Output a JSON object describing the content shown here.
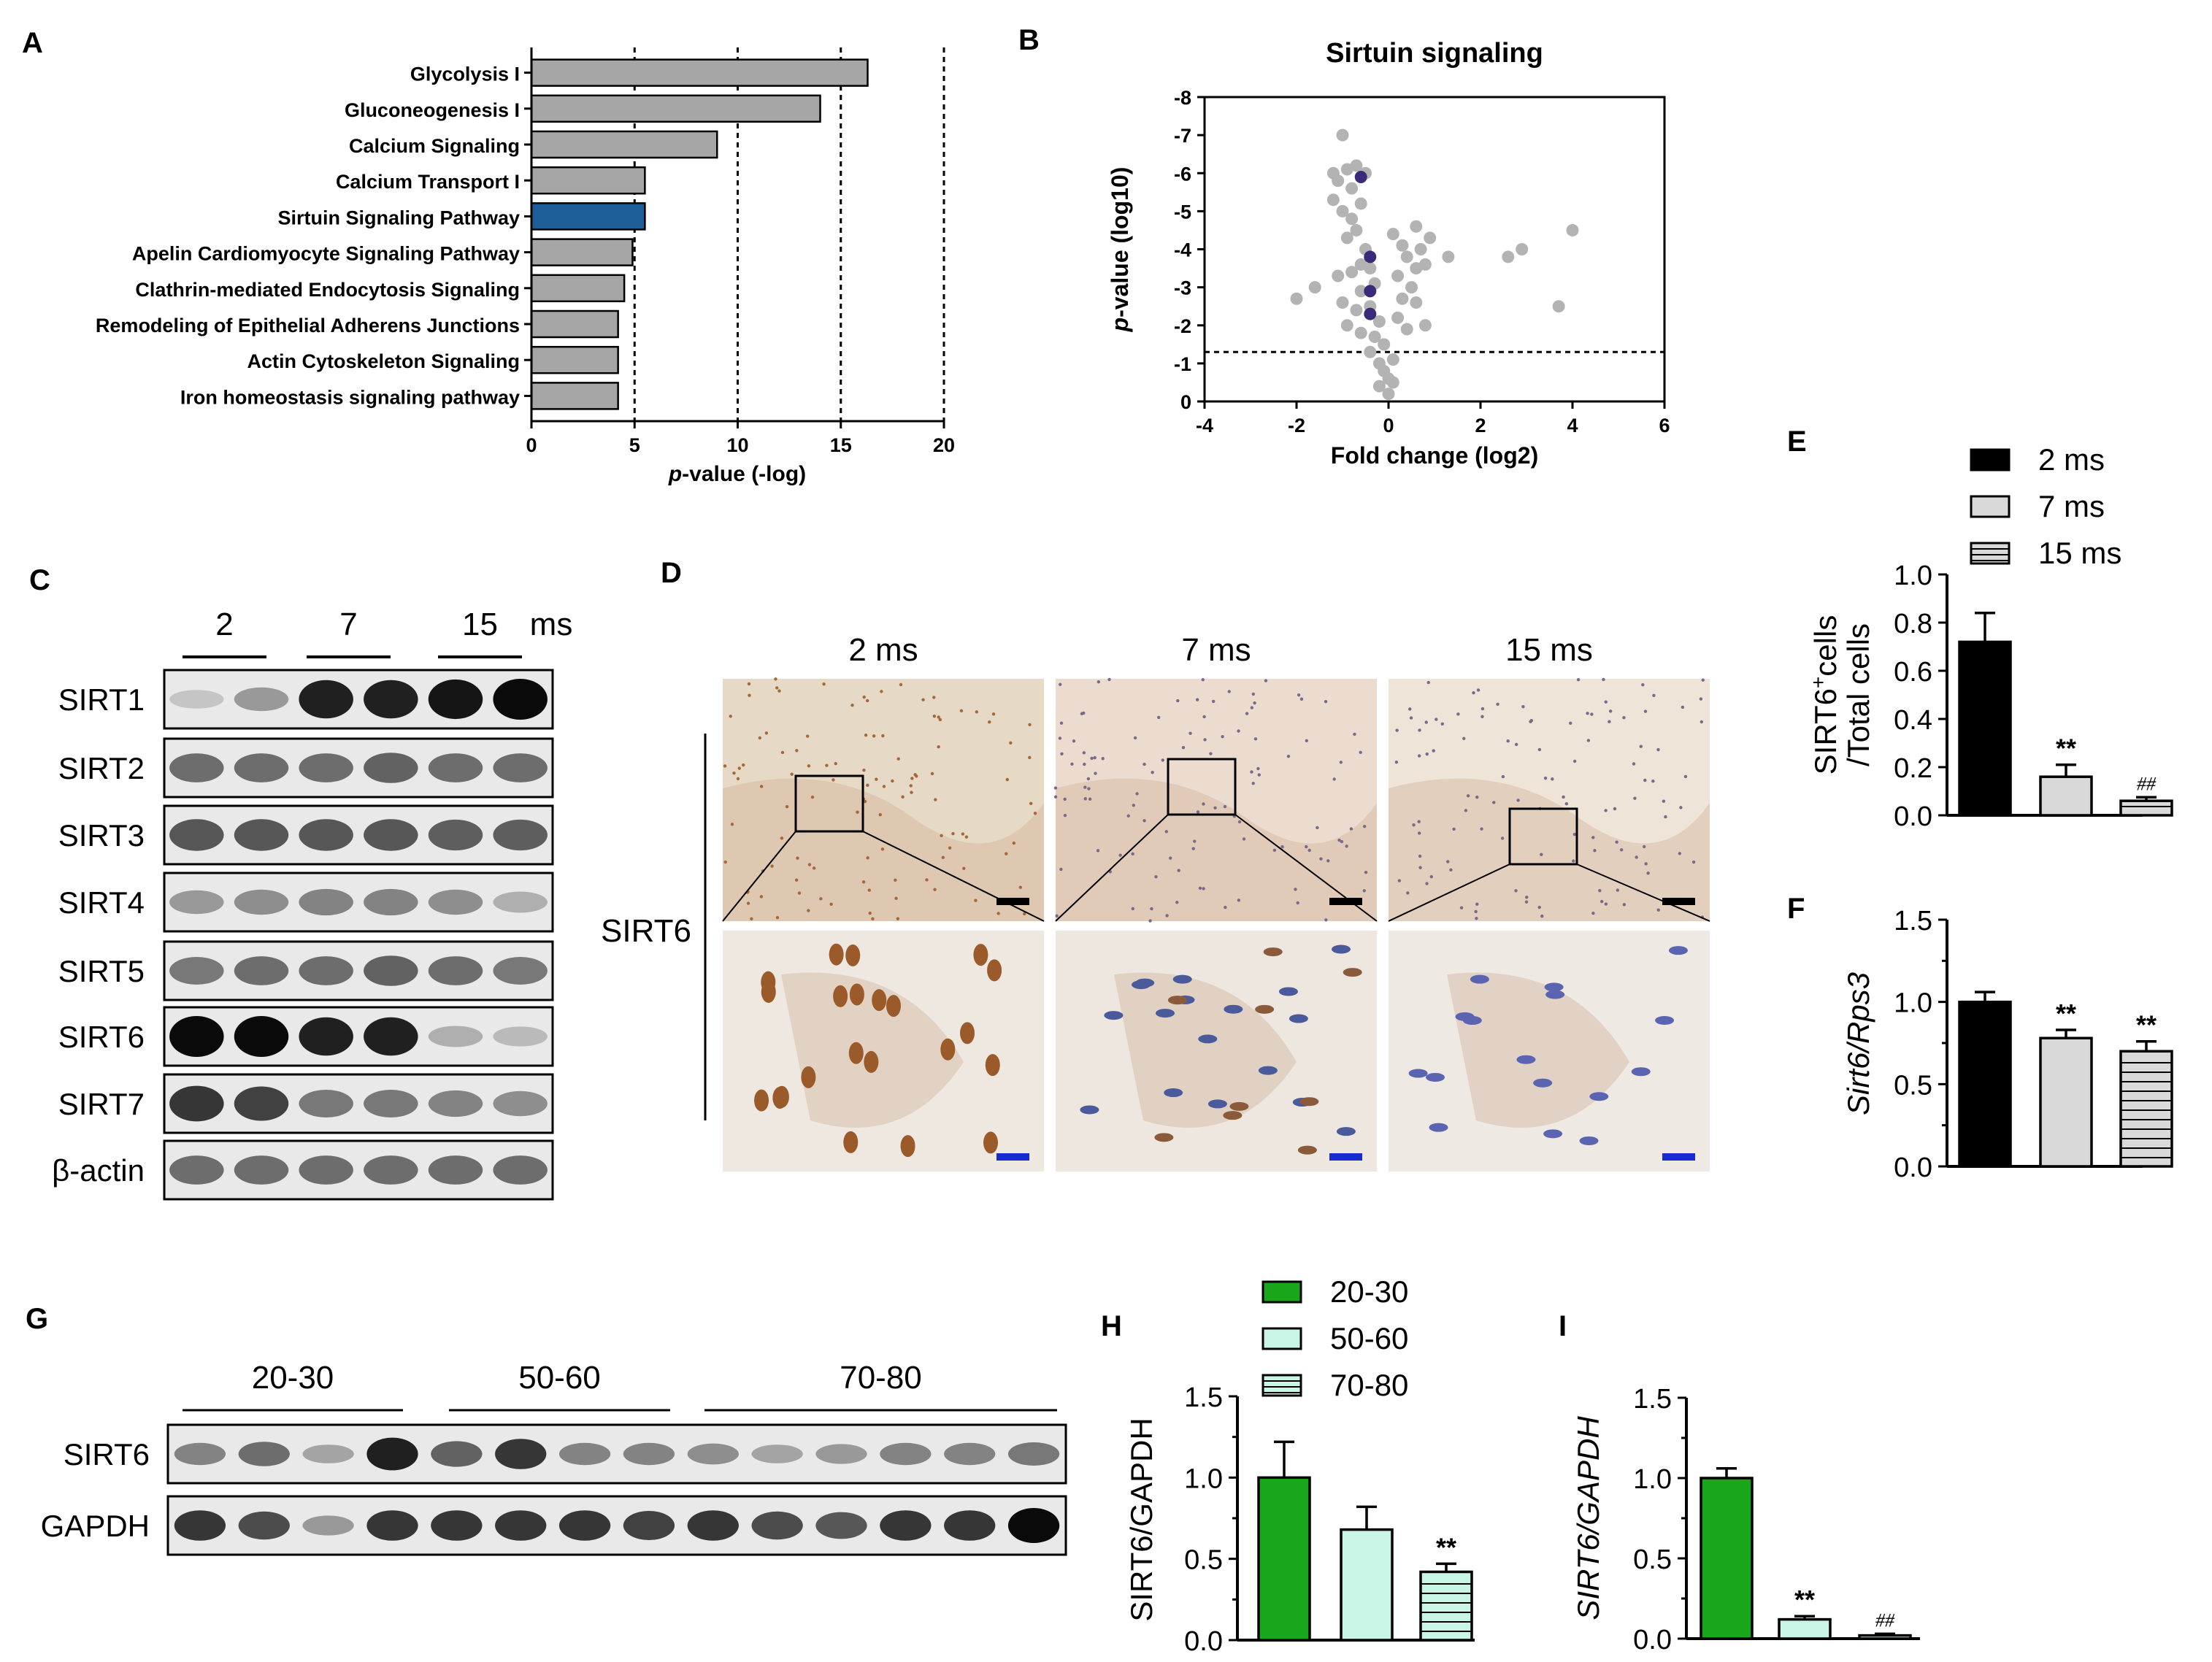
{
  "panels": {
    "A": "A",
    "B": "B",
    "C": "C",
    "D": "D",
    "E": "E",
    "F": "F",
    "G": "G",
    "H": "H",
    "I": "I"
  },
  "colors": {
    "gray_bar": "#a6a6a6",
    "highlight_bar": "#1f5f99",
    "black_bar": "#000000",
    "light_gray_bar": "#d9d9d9",
    "green_bar": "#1aa61a",
    "mint_bar": "#c8f5e6",
    "scatter_gray": "#b3b3b3",
    "scatter_purple": "#3a2a78"
  },
  "chart_data": [
    {
      "id": "A",
      "type": "bar",
      "orientation": "horizontal",
      "categories": [
        "Glycolysis I",
        "Gluconeogenesis I",
        "Calcium Signaling",
        "Calcium Transport I",
        "Sirtuin Signaling Pathway",
        "Apelin Cardiomyocyte Signaling Pathway",
        "Clathrin-mediated Endocytosis Signaling",
        "Remodeling of Epithelial Adherens Junctions",
        "Actin Cytoskeleton Signaling",
        "Iron homeostasis signaling pathway"
      ],
      "values": [
        16.3,
        14.0,
        9.0,
        5.5,
        5.5,
        4.9,
        4.5,
        4.2,
        4.2,
        4.2
      ],
      "highlight": "Sirtuin Signaling Pathway",
      "xlabel_prefix": "p",
      "xlabel_suffix": "-value (-log)",
      "xlim": [
        0,
        20
      ],
      "xticks": [
        "0",
        "5",
        "10",
        "15",
        "20"
      ],
      "xtick_values": [
        0,
        5,
        10,
        15,
        20
      ],
      "gridlines": [
        5,
        10,
        15,
        20
      ]
    },
    {
      "id": "B",
      "type": "scatter",
      "title": "Sirtuin signaling",
      "xlabel": "Fold change (log2)",
      "ylabel_prefix": "p",
      "ylabel_suffix": "-value (log10)",
      "xlim": [
        -4,
        6
      ],
      "ylim": [
        0,
        -8
      ],
      "xticks": [
        "-4",
        "-2",
        "0",
        "2",
        "4",
        "6"
      ],
      "xtick_values": [
        -4,
        -2,
        0,
        2,
        4,
        6
      ],
      "yticks": [
        "0",
        "-1",
        "-2",
        "-3",
        "-4",
        "-5",
        "-6",
        "-7",
        "-8"
      ],
      "ytick_values": [
        0,
        -1,
        -2,
        -3,
        -4,
        -5,
        -6,
        -7,
        -8
      ],
      "threshold": -1.3,
      "points_gray": [
        [
          -1.0,
          -7.0
        ],
        [
          -1.2,
          -6.0
        ],
        [
          -1.1,
          -5.8
        ],
        [
          -0.9,
          -6.1
        ],
        [
          -0.7,
          -6.2
        ],
        [
          -1.2,
          -5.3
        ],
        [
          -1.0,
          -5.0
        ],
        [
          -0.8,
          -4.8
        ],
        [
          -0.6,
          -5.2
        ],
        [
          -0.7,
          -4.5
        ],
        [
          -0.9,
          -4.3
        ],
        [
          -0.5,
          -4.0
        ],
        [
          -0.6,
          -3.6
        ],
        [
          -0.8,
          -3.4
        ],
        [
          -1.1,
          -3.3
        ],
        [
          -0.4,
          -3.5
        ],
        [
          -0.3,
          -3.1
        ],
        [
          -0.6,
          -2.9
        ],
        [
          -1.0,
          -2.6
        ],
        [
          -0.7,
          -2.4
        ],
        [
          -0.4,
          -2.5
        ],
        [
          -0.2,
          -2.1
        ],
        [
          -0.9,
          -2.0
        ],
        [
          -0.6,
          -1.8
        ],
        [
          -0.3,
          -1.7
        ],
        [
          -0.1,
          -1.5
        ],
        [
          -0.4,
          -1.3
        ],
        [
          -0.2,
          -1.0
        ],
        [
          -0.1,
          -0.8
        ],
        [
          0.0,
          -0.6
        ],
        [
          0.1,
          -0.5
        ],
        [
          -0.2,
          -0.4
        ],
        [
          0.0,
          -0.2
        ],
        [
          0.1,
          -1.1
        ],
        [
          0.2,
          -2.2
        ],
        [
          0.3,
          -2.7
        ],
        [
          0.5,
          -3.0
        ],
        [
          0.6,
          -3.5
        ],
        [
          0.4,
          -3.8
        ],
        [
          0.7,
          -4.0
        ],
        [
          0.8,
          -3.6
        ],
        [
          0.9,
          -4.3
        ],
        [
          0.6,
          -4.6
        ],
        [
          0.3,
          -4.1
        ],
        [
          0.1,
          -4.4
        ],
        [
          0.2,
          -3.3
        ],
        [
          0.6,
          -2.6
        ],
        [
          0.4,
          -1.9
        ],
        [
          1.3,
          -3.8
        ],
        [
          0.8,
          -2.0
        ],
        [
          -2.0,
          -2.7
        ],
        [
          -1.6,
          -3.0
        ],
        [
          2.6,
          -3.8
        ],
        [
          2.9,
          -4.0
        ],
        [
          3.7,
          -2.5
        ],
        [
          4.0,
          -4.5
        ],
        [
          -0.5,
          -6.0
        ],
        [
          -0.8,
          -5.6
        ]
      ],
      "points_purple": [
        [
          -0.6,
          -5.9
        ],
        [
          -0.4,
          -3.8
        ],
        [
          -0.4,
          -2.9
        ],
        [
          -0.4,
          -2.3
        ]
      ]
    },
    {
      "id": "E",
      "type": "bar",
      "categories": [
        "2 ms",
        "7 ms",
        "15 ms"
      ],
      "values": [
        0.72,
        0.16,
        0.06
      ],
      "errors": [
        0.12,
        0.05,
        0.015
      ],
      "annotations": [
        "",
        "**",
        "##"
      ],
      "ylabel_line1": "SIRT6",
      "ylabel_sup": "+",
      "ylabel_line1_rest": "cells",
      "ylabel_line2": "/Total cells",
      "ylim": [
        0,
        1.0
      ],
      "yticks": [
        "0.0",
        "0.2",
        "0.4",
        "0.6",
        "0.8",
        "1.0"
      ],
      "ytick_values": [
        0,
        0.2,
        0.4,
        0.6,
        0.8,
        1.0
      ],
      "legend": [
        "2 ms",
        "7 ms",
        "15 ms"
      ]
    },
    {
      "id": "F",
      "type": "bar",
      "categories": [
        "2 ms",
        "7 ms",
        "15 ms"
      ],
      "values": [
        1.0,
        0.78,
        0.7
      ],
      "errors": [
        0.06,
        0.05,
        0.06
      ],
      "annotations": [
        "",
        "**",
        "**"
      ],
      "ylabel": "Sirt6/Rps3",
      "ylim": [
        0,
        1.5
      ],
      "yticks": [
        "0.0",
        "0.5",
        "1.0",
        "1.5"
      ],
      "ytick_values": [
        0,
        0.5,
        1.0,
        1.5
      ]
    },
    {
      "id": "H",
      "type": "bar",
      "categories": [
        "20-30",
        "50-60",
        "70-80"
      ],
      "values": [
        1.0,
        0.68,
        0.42
      ],
      "errors": [
        0.22,
        0.14,
        0.05
      ],
      "annotations": [
        "",
        "",
        "**"
      ],
      "ylabel": "SIRT6/GAPDH",
      "ylim": [
        0,
        1.5
      ],
      "yticks": [
        "0.0",
        "0.5",
        "1.0",
        "1.5"
      ],
      "ytick_values": [
        0,
        0.5,
        1.0,
        1.5
      ],
      "legend": [
        "20-30",
        "50-60",
        "70-80"
      ]
    },
    {
      "id": "I",
      "type": "bar",
      "categories": [
        "20-30",
        "50-60",
        "70-80"
      ],
      "values": [
        1.0,
        0.12,
        0.02
      ],
      "errors": [
        0.06,
        0.02,
        0.01
      ],
      "annotations": [
        "",
        "**",
        "##"
      ],
      "ylabel": "SIRT6/GAPDH",
      "ylim": [
        0,
        1.5
      ],
      "yticks": [
        "0.0",
        "0.5",
        "1.0",
        "1.5"
      ],
      "ytick_values": [
        0,
        0.5,
        1.0,
        1.5
      ]
    }
  ],
  "blot_C": {
    "lane_groups": [
      "2",
      "7",
      "15"
    ],
    "unit": "ms",
    "rows": [
      "SIRT1",
      "SIRT2",
      "SIRT3",
      "SIRT4",
      "SIRT5",
      "SIRT6",
      "SIRT7",
      "β-actin"
    ],
    "intensity": [
      [
        0.15,
        0.35,
        0.9,
        0.9,
        0.95,
        1.0
      ],
      [
        0.55,
        0.55,
        0.55,
        0.6,
        0.55,
        0.55
      ],
      [
        0.65,
        0.65,
        0.65,
        0.65,
        0.62,
        0.62
      ],
      [
        0.35,
        0.4,
        0.45,
        0.45,
        0.4,
        0.25
      ],
      [
        0.5,
        0.55,
        0.55,
        0.6,
        0.55,
        0.5
      ],
      [
        1.0,
        1.0,
        0.9,
        0.9,
        0.25,
        0.2
      ],
      [
        0.8,
        0.75,
        0.5,
        0.5,
        0.45,
        0.4
      ],
      [
        0.55,
        0.55,
        0.55,
        0.55,
        0.55,
        0.55
      ]
    ]
  },
  "micro_D": {
    "timepoints": [
      "2 ms",
      "7 ms",
      "15 ms"
    ],
    "row_label": "SIRT6"
  },
  "blot_G": {
    "lane_groups": [
      "20-30",
      "50-60",
      "70-80"
    ],
    "rows": [
      "SIRT6",
      "GAPDH"
    ],
    "intensity": [
      [
        0.45,
        0.55,
        0.3,
        0.9,
        0.6,
        0.8,
        0.45,
        0.45,
        0.4,
        0.3,
        0.35,
        0.45,
        0.45,
        0.5
      ],
      [
        0.8,
        0.7,
        0.35,
        0.8,
        0.8,
        0.8,
        0.8,
        0.75,
        0.8,
        0.7,
        0.65,
        0.8,
        0.8,
        1.0
      ]
    ]
  }
}
